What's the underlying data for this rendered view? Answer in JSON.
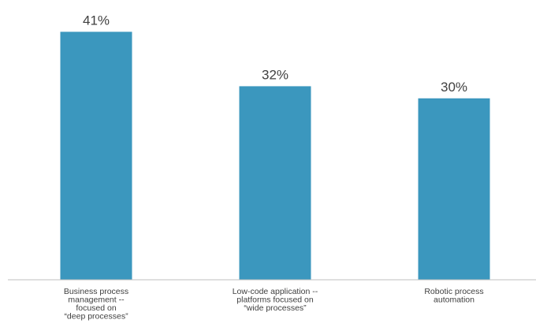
{
  "chart_data": {
    "type": "bar",
    "categories": [
      [
        "Business process",
        "management --",
        "focused on",
        "“deep processes”"
      ],
      [
        "Low-code application --",
        "platforms focused on",
        "“wide processes”"
      ],
      [
        "Robotic process",
        "automation"
      ]
    ],
    "values": [
      41,
      32,
      30
    ],
    "value_labels": [
      "41%",
      "32%",
      "30%"
    ],
    "ylim": [
      0,
      43
    ],
    "grid": false,
    "legend": "none",
    "colors": {
      "bar": "#3B97BE",
      "axis": "#BFBFBF",
      "text": "#404040"
    }
  }
}
